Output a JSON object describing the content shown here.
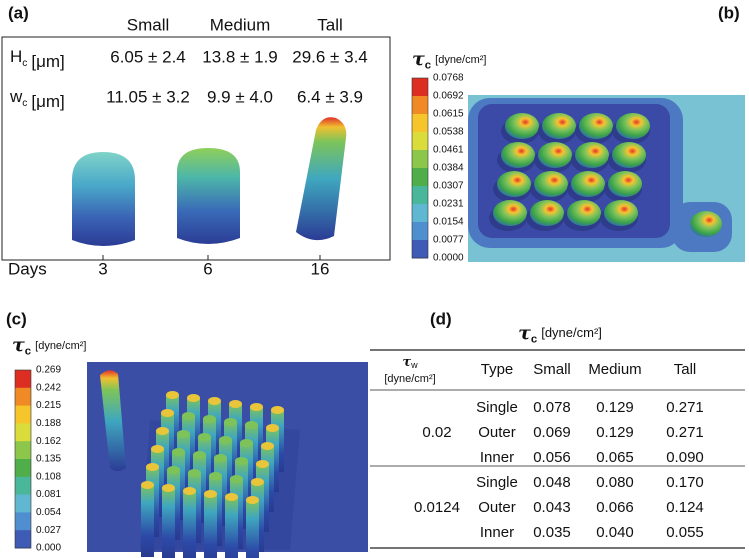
{
  "panel_a": {
    "label": "(a)",
    "columns": [
      "Small",
      "Medium",
      "Tall"
    ],
    "rows": [
      {
        "symbol": "H",
        "subscript": "c",
        "unit": "[μm]",
        "values": [
          "6.05 ± 2.4",
          "13.8 ± 1.9",
          "29.6 ± 3.4"
        ]
      },
      {
        "symbol": "w",
        "subscript": "c",
        "unit": "[μm]",
        "values": [
          "11.05 ± 3.2",
          "9.9 ± 4.0",
          "6.4 ± 3.9"
        ]
      }
    ],
    "axis_label": "Days",
    "days": [
      "3",
      "6",
      "16"
    ]
  },
  "panel_b": {
    "label": "(b)",
    "colorbar": {
      "symbol": "τ",
      "subscript": "c",
      "unit": "[dyne/cm²]",
      "ticks": [
        "0.0768",
        "0.0692",
        "0.0615",
        "0.0538",
        "0.0461",
        "0.0384",
        "0.0307",
        "0.0231",
        "0.0154",
        "0.0077",
        "0.0000"
      ]
    }
  },
  "panel_c": {
    "label": "(c)",
    "colorbar": {
      "symbol": "τ",
      "subscript": "c",
      "unit": "[dyne/cm²]",
      "ticks": [
        "0.269",
        "0.242",
        "0.215",
        "0.188",
        "0.162",
        "0.135",
        "0.108",
        "0.081",
        "0.054",
        "0.027",
        "0.000"
      ]
    }
  },
  "panel_d": {
    "label": "(d)",
    "title": {
      "symbol": "τ",
      "subscript": "c",
      "unit": "[dyne/cm²]"
    },
    "header": {
      "tau_w": {
        "symbol": "τ",
        "subscript": "w",
        "unit": "[dyne/cm²]"
      },
      "columns": [
        "Type",
        "Small",
        "Medium",
        "Tall"
      ]
    },
    "groups": [
      {
        "tau_w": "0.02",
        "rows": [
          [
            "Single",
            "0.078",
            "0.129",
            "0.271"
          ],
          [
            "Outer",
            "0.069",
            "0.129",
            "0.271"
          ],
          [
            "Inner",
            "0.056",
            "0.065",
            "0.090"
          ]
        ]
      },
      {
        "tau_w": "0.0124",
        "rows": [
          [
            "Single",
            "0.048",
            "0.080",
            "0.170"
          ],
          [
            "Outer",
            "0.043",
            "0.066",
            "0.124"
          ],
          [
            "Inner",
            "0.035",
            "0.040",
            "0.055"
          ]
        ]
      }
    ]
  }
}
